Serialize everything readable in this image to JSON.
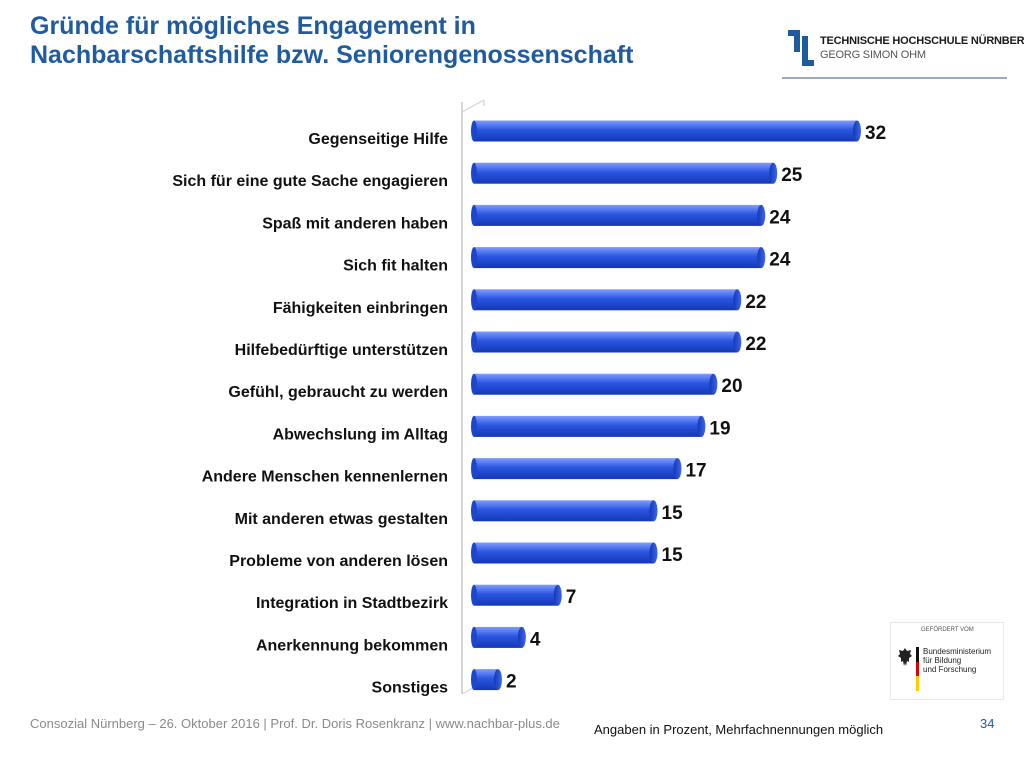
{
  "header": {
    "title_line1": "Gründe für mögliches Engagement in",
    "title_line2": "Nachbarschaftshilfe bzw. Seniorengenossenschaft"
  },
  "logo": {
    "line1": "TECHNISCHE HOCHSCHULE NÜRNBERG",
    "line2": "GEORG SIMON OHM"
  },
  "sponsor": {
    "label": "GEFÖRDERT VOM",
    "ministry_line1": "Bundesministerium",
    "ministry_line2": "für Bildung",
    "ministry_line3": "und Forschung"
  },
  "footer": {
    "credit": "Consozial Nürnberg – 26. Oktober 2016 | Prof. Dr. Doris Rosenkranz  | www.nachbar-plus.de",
    "note": "Angaben in Prozent, Mehrfachnennungen möglich",
    "page_number": "34"
  },
  "colors": {
    "title": "#1f5b9e",
    "bar_main": "#2a55e0",
    "bar_dark": "#1438b4",
    "bar_light": "#7f9cff"
  },
  "chart_data": {
    "type": "bar",
    "orientation": "horizontal",
    "categories": [
      "Gegenseitige Hilfe",
      "Sich für eine gute Sache engagieren",
      "Spaß mit anderen haben",
      "Sich fit halten",
      "Fähigkeiten einbringen",
      "Hilfebedürftige unterstützen",
      "Gefühl, gebraucht zu werden",
      "Abwechslung im Alltag",
      "Andere Menschen kennenlernen",
      "Mit anderen etwas gestalten",
      "Probleme von anderen lösen",
      "Integration in Stadtbezirk",
      "Anerkennung bekommen",
      "Sonstiges"
    ],
    "values": [
      32,
      25,
      24,
      24,
      22,
      22,
      20,
      19,
      17,
      15,
      15,
      7,
      4,
      2
    ],
    "xlim": [
      0,
      35
    ],
    "grid": false,
    "legend": "none"
  }
}
